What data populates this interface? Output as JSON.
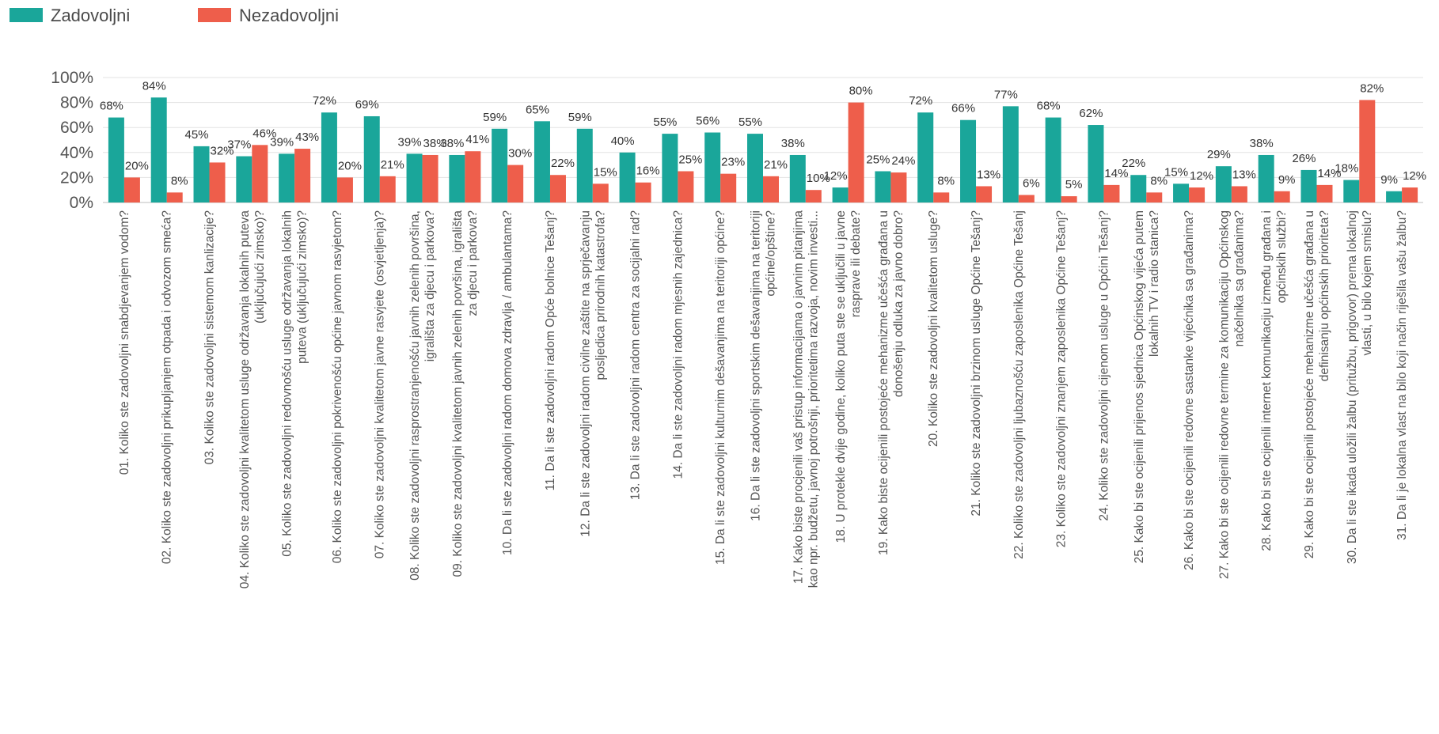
{
  "chart_data": {
    "type": "bar",
    "title": "",
    "xlabel": "",
    "ylabel": "",
    "ylim": [
      0,
      100
    ],
    "yticks": [
      "0%",
      "20%",
      "40%",
      "60%",
      "80%",
      "100%"
    ],
    "y_tick_values": [
      0,
      20,
      40,
      60,
      80,
      100
    ],
    "grid": true,
    "legend_position": "top-left",
    "categories": [
      [
        "01. Koliko ste zadovoljni snabdjevanjem vodom?"
      ],
      [
        "02. Koliko ste zadovoljni prikupljanjem otpada i odvozom smeća?"
      ],
      [
        "03. Koliko ste zadovoljni sistemom kanlizacije?"
      ],
      [
        "04. Koliko ste zadovoljni kvalitetom usluge održavanja lokalnih puteva",
        "(uključujući zimsko)?"
      ],
      [
        "05. Koliko ste zadovoljni redovnošću usluge održavanja lokalnih",
        "puteva (uključujući zimsko)?"
      ],
      [
        "06. Koliko ste zadovoljni pokrivenošću općine javnom rasvjetom?"
      ],
      [
        "07. Koliko ste zadovoljni kvalitetom javne rasvjete (osvjetljenja)?"
      ],
      [
        "08. Koliko ste zadovoljni rasprostranjenošću javnih zelenih površina,",
        "igrališta za djecu i parkova?"
      ],
      [
        "09. Koliko ste zadovoljni kvalitetom javnih zelenih površina, igrališta",
        "za djecu i parkova?"
      ],
      [
        "10. Da li ste zadovoljni radom domova zdravlja / ambulantama?"
      ],
      [
        "11. Da li ste zadovoljni radom Opće bolnice Tešanj?"
      ],
      [
        "12. Da li ste zadovoljni radom civilne zaštite na sprječavanju",
        "posljedica prirodnih katastrofa?"
      ],
      [
        "13. Da li ste zadovoljni radom centra za socijalni rad?"
      ],
      [
        "14. Da li ste zadovoljni radom mjesnih zajednica?"
      ],
      [
        "15. Da li ste zadovoljni kulturnim dešavanjima na teritoriji općine?"
      ],
      [
        "16. Da li ste zadovoljni sportskim dešavanjima na teritoriji",
        "općine/opštine?"
      ],
      [
        "17. Kako biste procjenili vaš pristup informacijama o javnim pitanjima",
        "kao npr. budžetu, javnoj potrošnji, prioritetima razvoja, novim investi..."
      ],
      [
        "18. U protekle dvije godine, koliko puta ste se uključili u javne",
        "rasprave ili debate?"
      ],
      [
        "19. Kako biste ocijenili postojeće mehanizme učešća građana u",
        "donošenju odluka za javno dobro?"
      ],
      [
        "20. Koliko ste zadovoljni kvalitetom usluge?"
      ],
      [
        "21. Koliko ste zadovoljni brzinom usluge Općine Tešanj?"
      ],
      [
        "22. Koliko ste zadovoljni ljubaznošću zaposlenika Općine Tešanj"
      ],
      [
        "23. Koliko ste zadovoljni znanjem zaposlenika Općine Tešanj?"
      ],
      [
        "24. Koliko ste zadovoljni cijenom usluge u Općini Tešanj?"
      ],
      [
        "25. Kako bi ste ocijenili prijenos sjednica Općinskog vijeća putem",
        "lokalnih TV i radio stanica?"
      ],
      [
        "26. Kako bi ste ocijenili redovne sastanke vijećnika sa građanima?"
      ],
      [
        "27. Kako bi ste ocijenili redovne termine za komunikaciju Općinskog",
        "načelnika sa građanima?"
      ],
      [
        "28. Kako bi ste ocijenili internet komunikaciju između građana i",
        "općinskih službi?"
      ],
      [
        "29. Kako bi ste ocijenili postojeće mehanizme učešća građana u",
        "definisanju općinskih prioriteta?"
      ],
      [
        "30. Da li ste ikada uložili žalbu (pritužbu, prigovor) prema lokalnoj",
        "vlasti, u bilo kojem smislu?"
      ],
      [
        "31. Da li je lokalna vlast na bilo koji način riješila vašu žalbu?"
      ]
    ],
    "series": [
      {
        "name": "Zadovoljni",
        "color": "#1aa69a",
        "values": [
          68,
          84,
          45,
          37,
          39,
          72,
          69,
          39,
          38,
          59,
          65,
          59,
          40,
          55,
          56,
          55,
          38,
          12,
          25,
          72,
          66,
          77,
          68,
          62,
          22,
          15,
          29,
          38,
          26,
          18,
          9
        ]
      },
      {
        "name": "Nezadovoljni",
        "color": "#ee5e4b",
        "values": [
          20,
          8,
          32,
          46,
          43,
          20,
          21,
          38,
          41,
          30,
          22,
          15,
          16,
          25,
          23,
          21,
          10,
          80,
          24,
          8,
          13,
          6,
          5,
          14,
          8,
          12,
          13,
          9,
          14,
          82,
          12
        ]
      }
    ]
  }
}
